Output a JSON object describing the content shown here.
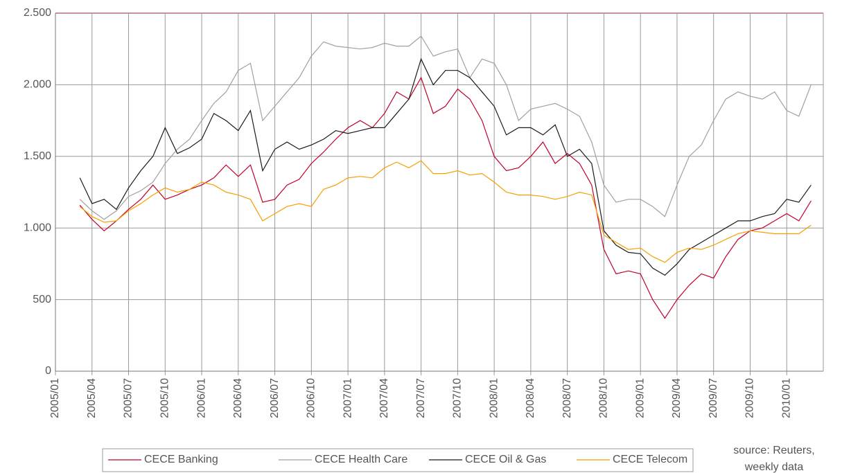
{
  "chart_data": {
    "type": "line",
    "x": [
      "2005/03",
      "2005/04",
      "2005/05",
      "2005/06",
      "2005/07",
      "2005/08",
      "2005/09",
      "2005/10",
      "2005/11",
      "2005/12",
      "2006/01",
      "2006/02",
      "2006/03",
      "2006/04",
      "2006/05",
      "2006/06",
      "2006/07",
      "2006/08",
      "2006/09",
      "2006/10",
      "2006/11",
      "2006/12",
      "2007/01",
      "2007/02",
      "2007/03",
      "2007/04",
      "2007/05",
      "2007/06",
      "2007/07",
      "2007/08",
      "2007/09",
      "2007/10",
      "2007/11",
      "2007/12",
      "2008/01",
      "2008/02",
      "2008/03",
      "2008/04",
      "2008/05",
      "2008/06",
      "2008/07",
      "2008/08",
      "2008/09",
      "2008/10",
      "2008/11",
      "2008/12",
      "2009/01",
      "2009/02",
      "2009/03",
      "2009/04",
      "2009/05",
      "2009/06",
      "2009/07",
      "2009/08",
      "2009/09",
      "2009/10",
      "2009/11",
      "2009/12",
      "2010/01",
      "2010/02",
      "2010/03"
    ],
    "series": [
      {
        "name": "CECE Banking",
        "color": "#c0002a",
        "values": [
          1160,
          1060,
          980,
          1050,
          1130,
          1200,
          1300,
          1200,
          1230,
          1270,
          1300,
          1350,
          1440,
          1360,
          1440,
          1180,
          1200,
          1300,
          1340,
          1450,
          1530,
          1620,
          1700,
          1750,
          1700,
          1800,
          1950,
          1900,
          2050,
          1800,
          1850,
          1970,
          1900,
          1750,
          1500,
          1400,
          1420,
          1500,
          1600,
          1450,
          1520,
          1450,
          1300,
          850,
          680,
          700,
          680,
          500,
          370,
          500,
          600,
          680,
          650,
          800,
          920,
          980,
          1000,
          1050,
          1100,
          1050,
          1190
        ]
      },
      {
        "name": "CECE Health Care",
        "color": "#a0a0a0",
        "values": [
          1200,
          1120,
          1060,
          1120,
          1220,
          1260,
          1320,
          1450,
          1550,
          1620,
          1750,
          1870,
          1950,
          2100,
          2150,
          1750,
          1850,
          1950,
          2050,
          2200,
          2300,
          2270,
          2260,
          2250,
          2260,
          2290,
          2270,
          2270,
          2340,
          2200,
          2230,
          2250,
          2050,
          2180,
          2150,
          2000,
          1750,
          1830,
          1850,
          1870,
          1830,
          1780,
          1600,
          1300,
          1180,
          1200,
          1200,
          1150,
          1080,
          1300,
          1500,
          1580,
          1750,
          1900,
          1950,
          1920,
          1900,
          1950,
          1820,
          1780,
          2000
        ]
      },
      {
        "name": "CECE Oil & Gas",
        "color": "#1a1a1a",
        "values": [
          1350,
          1170,
          1200,
          1130,
          1280,
          1400,
          1500,
          1700,
          1520,
          1560,
          1620,
          1800,
          1750,
          1680,
          1820,
          1400,
          1550,
          1600,
          1550,
          1580,
          1620,
          1680,
          1660,
          1680,
          1700,
          1700,
          1800,
          1900,
          2180,
          2000,
          2100,
          2100,
          2050,
          1950,
          1850,
          1650,
          1700,
          1700,
          1650,
          1720,
          1500,
          1550,
          1450,
          980,
          880,
          830,
          820,
          720,
          670,
          750,
          850,
          900,
          950,
          1000,
          1050,
          1050,
          1080,
          1100,
          1200,
          1180,
          1300
        ]
      },
      {
        "name": "CECE Telecom",
        "color": "#f5a000",
        "values": [
          1150,
          1080,
          1040,
          1050,
          1120,
          1170,
          1230,
          1280,
          1250,
          1270,
          1320,
          1300,
          1250,
          1230,
          1200,
          1050,
          1100,
          1150,
          1170,
          1150,
          1270,
          1300,
          1350,
          1360,
          1350,
          1420,
          1460,
          1420,
          1470,
          1380,
          1380,
          1400,
          1370,
          1380,
          1320,
          1250,
          1230,
          1230,
          1220,
          1200,
          1220,
          1250,
          1230,
          950,
          900,
          850,
          860,
          800,
          760,
          830,
          860,
          850,
          880,
          920,
          960,
          980,
          970,
          960,
          960,
          960,
          1020
        ]
      }
    ],
    "xlim": [
      "2005/01",
      "2010/04"
    ],
    "xticks": [
      "2005/01",
      "2005/04",
      "2005/07",
      "2005/10",
      "2006/01",
      "2006/04",
      "2006/07",
      "2006/10",
      "2007/01",
      "2007/04",
      "2007/07",
      "2007/10",
      "2008/01",
      "2008/04",
      "2008/07",
      "2008/10",
      "2009/01",
      "2009/04",
      "2009/07",
      "2009/10",
      "2010/01"
    ],
    "ylim": [
      0,
      2500
    ],
    "yticks": [
      0,
      500,
      {
        "value": 1000,
        "label": "1.000"
      },
      {
        "value": 1500,
        "label": "1.500"
      },
      {
        "value": 2000,
        "label": "2.000"
      },
      {
        "value": 2500,
        "label": "2.500"
      }
    ],
    "grid": true,
    "legend": "bottom",
    "source": [
      "source: Reuters,",
      "weekly data"
    ]
  }
}
